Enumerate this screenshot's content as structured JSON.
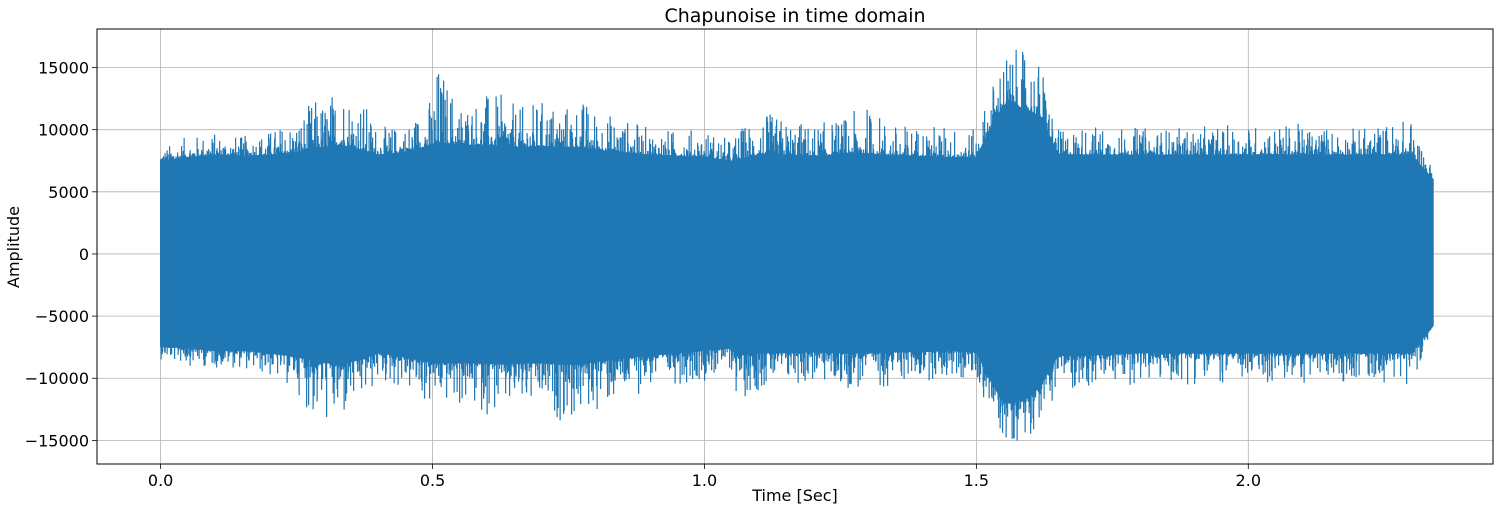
{
  "chart_data": {
    "type": "line",
    "title": "Chapunoise in time domain",
    "xlabel": "Time [Sec]",
    "ylabel": "Amplitude",
    "xlim": [
      -0.117,
      2.45
    ],
    "ylim": [
      -16900,
      18100
    ],
    "x_ticks": [
      0.0,
      0.5,
      1.0,
      1.5,
      2.0
    ],
    "x_tick_labels": [
      "0.0",
      "0.5",
      "1.0",
      "1.5",
      "2.0"
    ],
    "y_ticks": [
      -15000,
      -10000,
      -5000,
      0,
      5000,
      10000,
      15000
    ],
    "y_tick_labels": [
      "−15000",
      "−10000",
      "−5000",
      "0",
      "5000",
      "10000",
      "15000"
    ],
    "grid": true,
    "color": "#1f77b4",
    "series": [
      {
        "x_start": 0.0,
        "x_end": 2.34,
        "envelope": {
          "x": [
            0.0,
            0.05,
            0.1,
            0.15,
            0.2,
            0.25,
            0.28,
            0.31,
            0.33,
            0.34,
            0.37,
            0.4,
            0.45,
            0.5,
            0.51,
            0.55,
            0.6,
            0.63,
            0.66,
            0.7,
            0.75,
            0.77,
            0.8,
            0.85,
            0.9,
            0.95,
            1.0,
            1.05,
            1.06,
            1.1,
            1.15,
            1.2,
            1.25,
            1.3,
            1.35,
            1.4,
            1.45,
            1.5,
            1.53,
            1.55,
            1.57,
            1.6,
            1.62,
            1.65,
            1.7,
            1.8,
            1.9,
            2.0,
            2.1,
            2.2,
            2.3,
            2.34
          ],
          "max": [
            8500,
            9500,
            9800,
            9500,
            10000,
            11000,
            12500,
            12800,
            14500,
            14000,
            12800,
            10200,
            10500,
            13000,
            15800,
            12500,
            13000,
            12800,
            11800,
            12500,
            12200,
            12800,
            11800,
            11000,
            10200,
            10000,
            10200,
            9200,
            10000,
            11500,
            11000,
            10500,
            11000,
            12000,
            10500,
            10500,
            10500,
            10000,
            14000,
            16500,
            16500,
            16200,
            15500,
            10000,
            10500,
            10200,
            10200,
            10500,
            10500,
            10200,
            11000,
            7000
          ],
          "min": [
            -8500,
            -9000,
            -9200,
            -9200,
            -10000,
            -11000,
            -13500,
            -14000,
            -15200,
            -13500,
            -12500,
            -10500,
            -11000,
            -12800,
            -12000,
            -12500,
            -13000,
            -13200,
            -12800,
            -12800,
            -13800,
            -13500,
            -12800,
            -12000,
            -10800,
            -10500,
            -10200,
            -9500,
            -12000,
            -11000,
            -10800,
            -10500,
            -10800,
            -11200,
            -10500,
            -10200,
            -10200,
            -10500,
            -13000,
            -15200,
            -15200,
            -14500,
            -13500,
            -11000,
            -11000,
            -10500,
            -10500,
            -10500,
            -10500,
            -10200,
            -10500,
            -6000
          ],
          "core_max": [
            7500,
            7800,
            8000,
            7900,
            8000,
            8200,
            8500,
            8600,
            8800,
            8700,
            8400,
            8000,
            8200,
            8800,
            9000,
            8800,
            8800,
            8700,
            8600,
            8700,
            8600,
            8600,
            8400,
            8200,
            8000,
            7900,
            7800,
            7500,
            7600,
            8000,
            8000,
            7900,
            8000,
            8100,
            7900,
            7900,
            7800,
            7800,
            10500,
            12000,
            12000,
            11500,
            11000,
            8000,
            8000,
            8000,
            8000,
            8000,
            8000,
            8000,
            8000,
            6000
          ],
          "core_min": [
            -7500,
            -7600,
            -7800,
            -7800,
            -8000,
            -8300,
            -8600,
            -8800,
            -9000,
            -8800,
            -8500,
            -8000,
            -8300,
            -8800,
            -8800,
            -8800,
            -8800,
            -8900,
            -8800,
            -8800,
            -8900,
            -8900,
            -8700,
            -8400,
            -8200,
            -8000,
            -7800,
            -7600,
            -8200,
            -8000,
            -8000,
            -7900,
            -8000,
            -8000,
            -7900,
            -7900,
            -7800,
            -7900,
            -10500,
            -12000,
            -12000,
            -11500,
            -10500,
            -8200,
            -8200,
            -8000,
            -8000,
            -8000,
            -8000,
            -8000,
            -8000,
            -5800
          ]
        }
      }
    ]
  }
}
